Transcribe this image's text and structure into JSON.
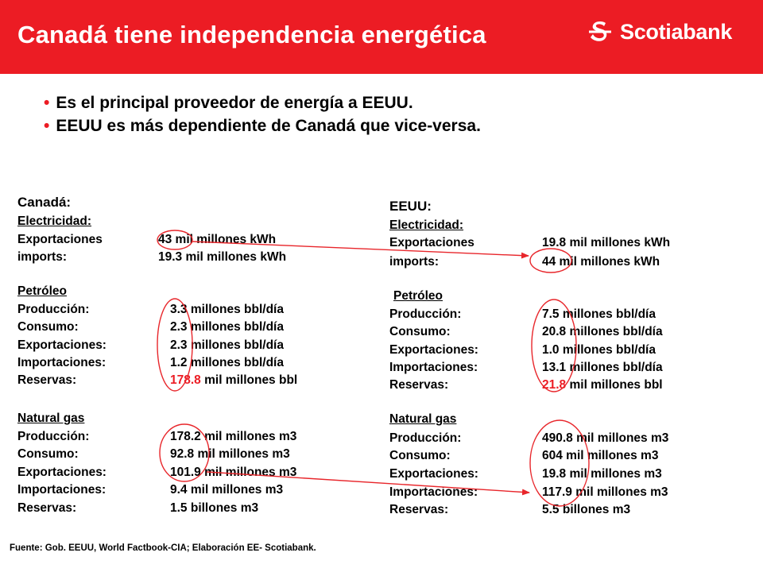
{
  "slide": {
    "title": "Canadá tiene independencia energética",
    "logo_text": "Scotiabank",
    "bullets": [
      "Es el principal proveedor de energía a EEUU.",
      "EEUU es más dependiente de Canadá que vice-versa."
    ],
    "source": "Fuente: Gob. EEUU, World Factbook-CIA; Elaboración EE- Scotiabank."
  },
  "canada": {
    "heading": "Canadá:",
    "electricidad": {
      "title": "Electricidad:",
      "rows": [
        {
          "label": "Exportaciones",
          "value": "43 mil millones kWh"
        },
        {
          "label": "imports:",
          "value": "19.3 mil millones kWh"
        }
      ]
    },
    "petroleo": {
      "title": "Petróleo",
      "rows": [
        {
          "label": "Producción:",
          "value": "3.3 millones bbl/día"
        },
        {
          "label": "Consumo:",
          "value": "2.3 millones bbl/día"
        },
        {
          "label": "Exportaciones:",
          "value": "2.3 millones bbl/día"
        },
        {
          "label": "Importaciones:",
          "value": "1.2 millones bbl/día"
        },
        {
          "label": "Reservas:",
          "value_highlight": "178.8",
          "value_rest": " mil millones bbl"
        }
      ]
    },
    "gas": {
      "title": "Natural gas",
      "rows": [
        {
          "label": "Producción:",
          "value": "178.2 mil millones m3"
        },
        {
          "label": "Consumo:",
          "value": "92.8 mil millones m3"
        },
        {
          "label": "Exportaciones:",
          "value": "101.9 mil millones m3"
        },
        {
          "label": "Importaciones:",
          "value": "9.4 mil millones m3"
        },
        {
          "label": "Reservas:",
          "value": "1.5 billones m3"
        }
      ]
    }
  },
  "eeuu": {
    "heading": "EEUU:",
    "electricidad": {
      "title": "Electricidad:",
      "rows": [
        {
          "label": "Exportaciones",
          "value": "19.8 mil millones kWh"
        },
        {
          "label": "imports:",
          "value": "44 mil millones kWh"
        }
      ]
    },
    "petroleo": {
      "title": "Petróleo",
      "rows": [
        {
          "label": "Producción:",
          "value": "7.5 millones bbl/día"
        },
        {
          "label": "Consumo:",
          "value": "20.8 millones bbl/día"
        },
        {
          "label": "Exportaciones:",
          "value": "1.0 millones bbl/día"
        },
        {
          "label": "Importaciones:",
          "value": "13.1 millones bbl/día"
        },
        {
          "label": "Reservas:",
          "value_highlight": "21.8",
          "value_rest": " mil millones bbl"
        }
      ]
    },
    "gas": {
      "title": "Natural gas",
      "rows": [
        {
          "label": "Producción:",
          "value": "490.8 mil millones m3"
        },
        {
          "label": "Consumo:",
          "value": "604 mil millones m3"
        },
        {
          "label": "Exportaciones:",
          "value": "19.8 mil millones m3"
        },
        {
          "label": "Importaciones:",
          "value": "117.9 mil millones m3"
        },
        {
          "label": "Reservas:",
          "value": "5.5 billones m3"
        }
      ]
    }
  },
  "colors": {
    "brand_red": "#ec1c24",
    "annotation_red": "#e8262b",
    "text": "#000000"
  }
}
